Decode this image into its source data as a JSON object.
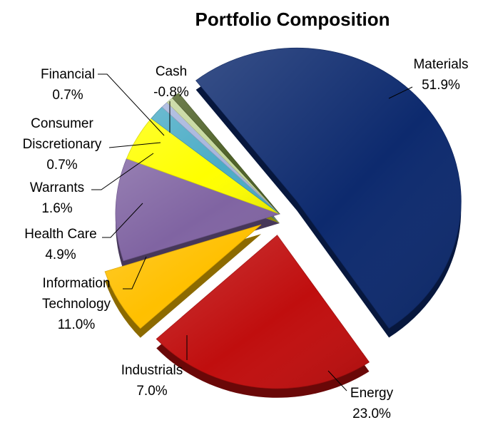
{
  "chart_data": {
    "type": "pie",
    "title": "Portfolio Composition",
    "style": "3d-exploded",
    "slices": [
      {
        "name": "Materials",
        "value": 51.9,
        "label": "51.9%",
        "color": "#0d2a6e",
        "exploded": true
      },
      {
        "name": "Energy",
        "value": 23.0,
        "label": "23.0%",
        "color": "#c00e0e",
        "exploded": true
      },
      {
        "name": "Industrials",
        "value": 7.0,
        "label": "7.0%",
        "color": "#ffc000",
        "exploded": true
      },
      {
        "name": "Information Technology",
        "value": 11.0,
        "label": "11.0%",
        "color": "#8064a2",
        "exploded": false
      },
      {
        "name": "Health Care",
        "value": 4.9,
        "label": "4.9%",
        "color": "#ffff00",
        "exploded": false
      },
      {
        "name": "Warrants",
        "value": 1.6,
        "label": "1.6%",
        "color": "#4bacc6",
        "exploded": false
      },
      {
        "name": "Consumer Discretionary",
        "value": 0.7,
        "label": "0.7%",
        "color": "#a5b4dc",
        "exploded": false
      },
      {
        "name": "Financial",
        "value": 0.7,
        "label": "0.7%",
        "color": "#c4d79b",
        "exploded": false
      },
      {
        "name": "Cash",
        "value": -0.8,
        "label": "-0.8%",
        "color": "#4f6228",
        "exploded": false
      }
    ]
  }
}
